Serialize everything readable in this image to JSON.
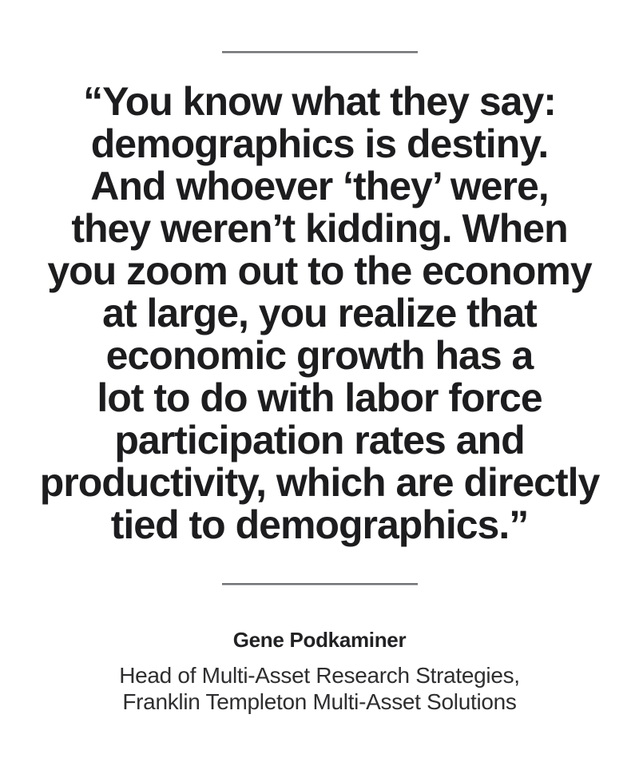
{
  "page": {
    "background_color": "#ffffff",
    "divider_color": "#717275",
    "quote_text_color": "#1d1d1f",
    "attribution_text_color": "#2e2e30"
  },
  "quote": {
    "full_text": "“You know what they say: demographics is destiny. And whoever ‘they’ were, they weren’t kidding. When you zoom out to the economy at large, you realize that economic growth has a lot to do with labor force participation rates and productivity, which are directly tied to demographics.”",
    "lines": [
      "“You know what they say:",
      "demographics is destiny.",
      "And whoever ‘they’ were,",
      "they weren’t kidding. When",
      "you zoom out to the economy",
      "at large, you realize that",
      "economic growth has a",
      "lot to do with labor force",
      "participation rates and",
      "productivity, which are directly",
      "tied to demographics.”"
    ]
  },
  "attribution": {
    "name": "Gene Podkaminer",
    "title_lines": [
      "Head of Multi-Asset Research Strategies,",
      "Franklin Templeton Multi-Asset Solutions"
    ]
  }
}
